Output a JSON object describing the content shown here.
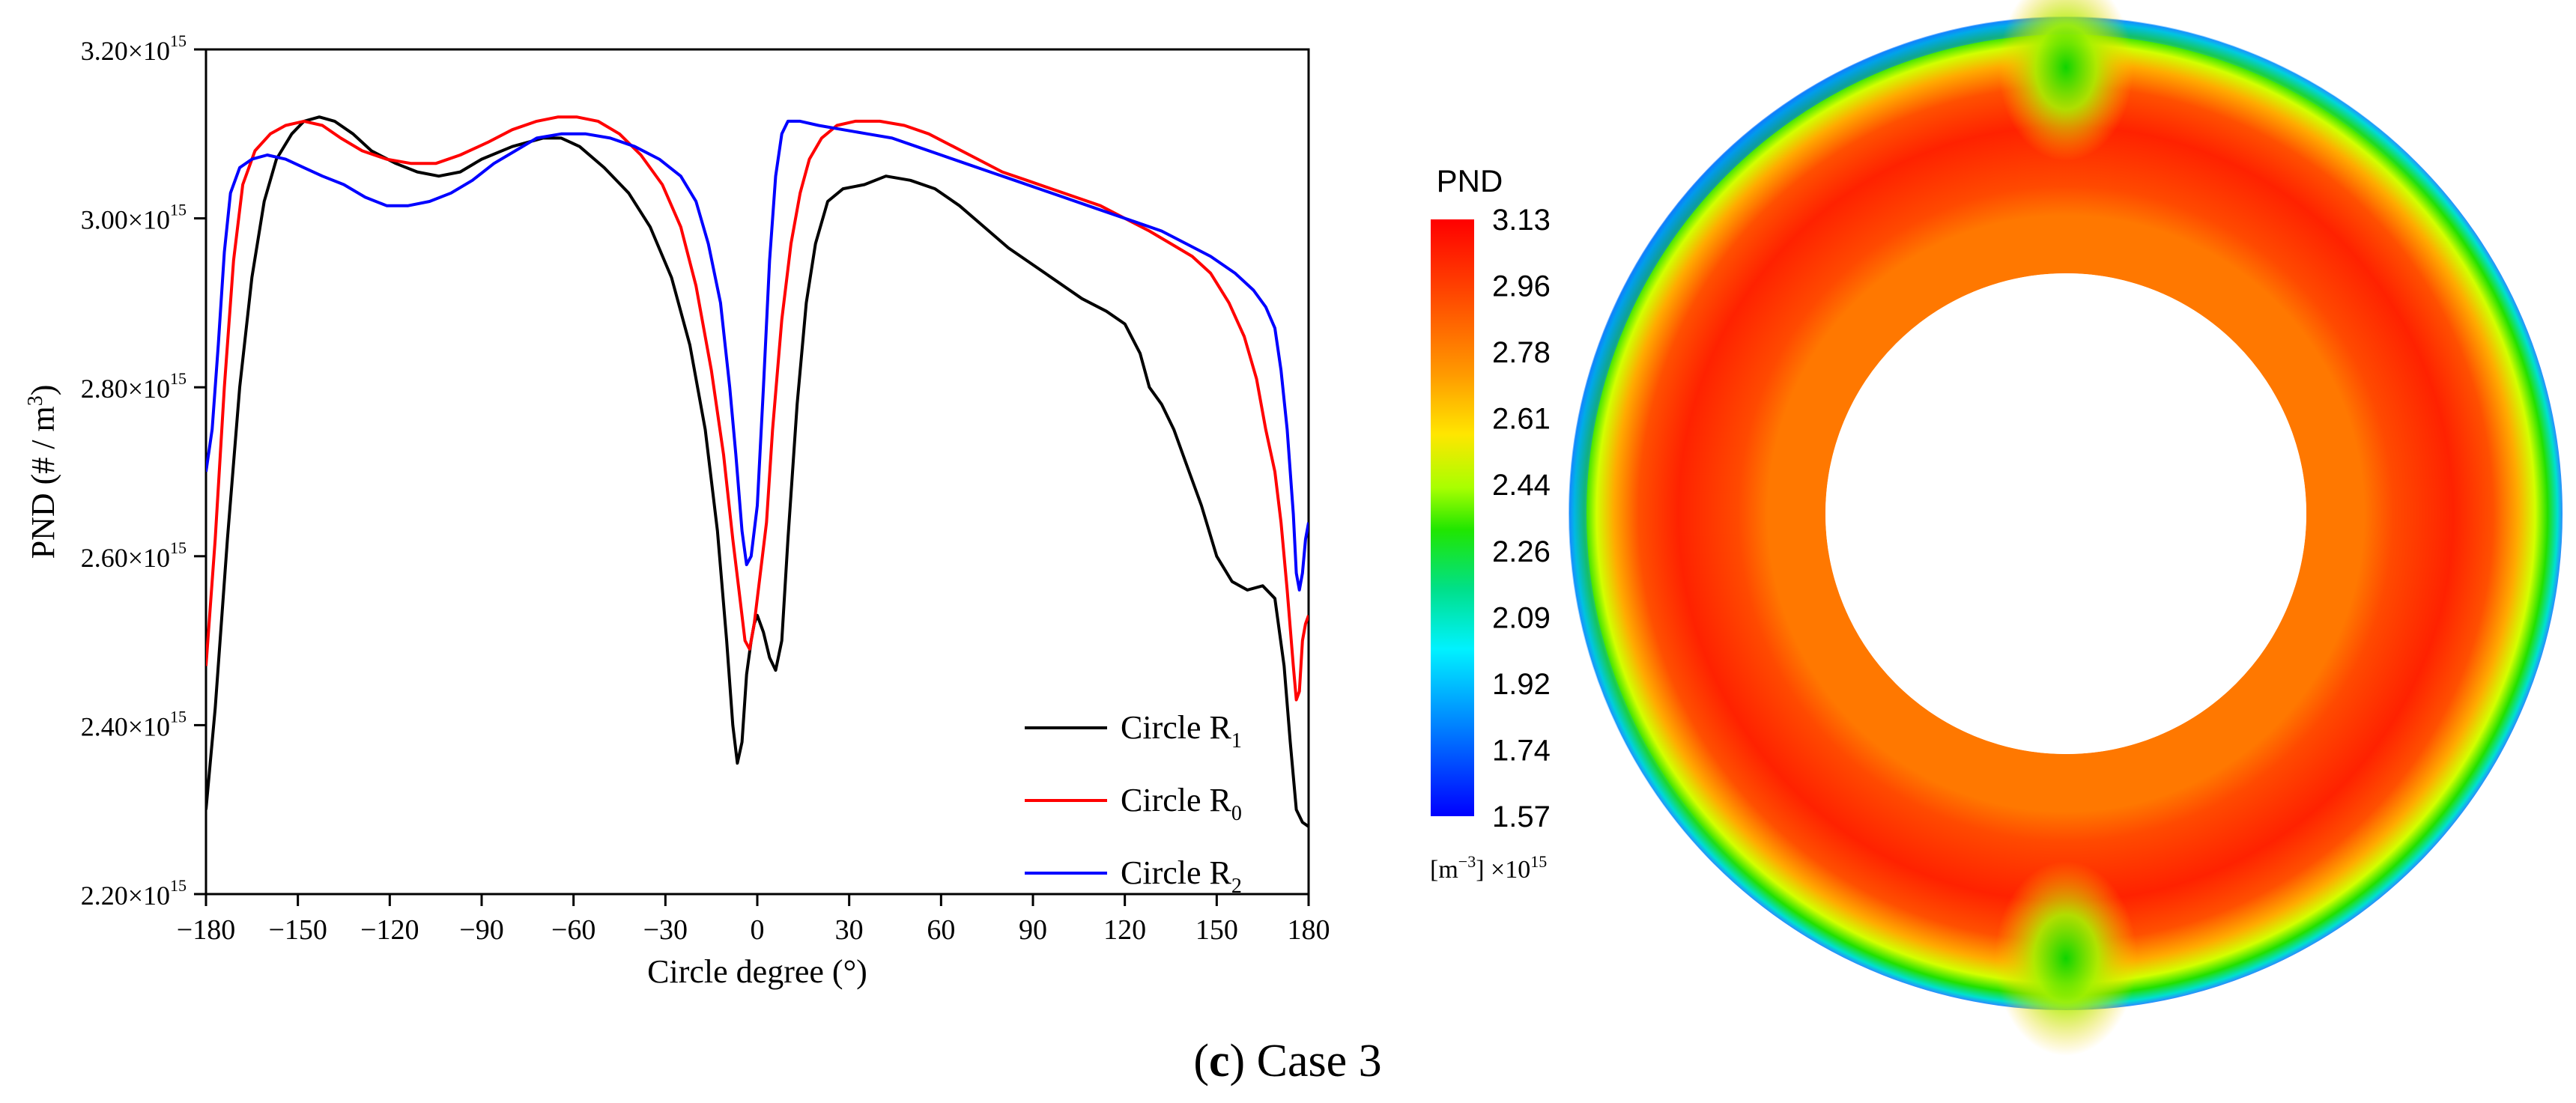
{
  "chart_data": {
    "type": "line",
    "xlabel": "Circle degree (°)",
    "ylabel": "PND (# / m",
    "ylabel_sup": "3",
    "ylabel_close": ")",
    "xlim": [
      -180,
      180
    ],
    "ylim": [
      2.2,
      3.2
    ],
    "y_scale_exponent": 15,
    "x_ticks": [
      -180,
      -150,
      -120,
      -90,
      -60,
      -30,
      0,
      30,
      60,
      90,
      120,
      150,
      180
    ],
    "x_tick_labels": [
      "−180",
      "−150",
      "−120",
      "−90",
      "−60",
      "−30",
      "0",
      "30",
      "60",
      "90",
      "120",
      "150",
      "180"
    ],
    "y_ticks": [
      2.2,
      2.4,
      2.6,
      2.8,
      3.0,
      3.2
    ],
    "y_tick_labels": [
      "2.20×10",
      "2.40×10",
      "2.60×10",
      "2.80×10",
      "3.00×10",
      "3.20×10"
    ],
    "y_tick_sup": "15",
    "legend_position": "bottom-right",
    "series": [
      {
        "name": "Circle R",
        "subscript": "1",
        "color": "#000000",
        "points": [
          [
            -180,
            2.3
          ],
          [
            -177,
            2.42
          ],
          [
            -173,
            2.62
          ],
          [
            -169,
            2.8
          ],
          [
            -165,
            2.93
          ],
          [
            -161,
            3.02
          ],
          [
            -157,
            3.07
          ],
          [
            -152,
            3.1
          ],
          [
            -148,
            3.115
          ],
          [
            -143,
            3.12
          ],
          [
            -138,
            3.115
          ],
          [
            -132,
            3.1
          ],
          [
            -126,
            3.08
          ],
          [
            -118,
            3.065
          ],
          [
            -111,
            3.055
          ],
          [
            -104,
            3.05
          ],
          [
            -97,
            3.055
          ],
          [
            -90,
            3.07
          ],
          [
            -80,
            3.085
          ],
          [
            -70,
            3.095
          ],
          [
            -64,
            3.095
          ],
          [
            -58,
            3.085
          ],
          [
            -50,
            3.06
          ],
          [
            -42,
            3.03
          ],
          [
            -35,
            2.99
          ],
          [
            -28,
            2.93
          ],
          [
            -22,
            2.85
          ],
          [
            -17,
            2.75
          ],
          [
            -13,
            2.63
          ],
          [
            -10,
            2.5
          ],
          [
            -8,
            2.4
          ],
          [
            -6.5,
            2.355
          ],
          [
            -5,
            2.38
          ],
          [
            -3.5,
            2.46
          ],
          [
            -2,
            2.5
          ],
          [
            -1,
            2.52
          ],
          [
            0,
            2.53
          ],
          [
            2,
            2.51
          ],
          [
            4,
            2.48
          ],
          [
            6,
            2.465
          ],
          [
            8,
            2.5
          ],
          [
            10,
            2.62
          ],
          [
            13,
            2.78
          ],
          [
            16,
            2.9
          ],
          [
            19,
            2.97
          ],
          [
            23,
            3.02
          ],
          [
            28,
            3.035
          ],
          [
            35,
            3.04
          ],
          [
            42,
            3.05
          ],
          [
            50,
            3.045
          ],
          [
            58,
            3.035
          ],
          [
            66,
            3.015
          ],
          [
            74,
            2.99
          ],
          [
            82,
            2.965
          ],
          [
            90,
            2.945
          ],
          [
            98,
            2.925
          ],
          [
            106,
            2.905
          ],
          [
            114,
            2.89
          ],
          [
            120,
            2.875
          ],
          [
            125,
            2.84
          ],
          [
            128,
            2.8
          ],
          [
            132,
            2.78
          ],
          [
            136,
            2.75
          ],
          [
            140,
            2.71
          ],
          [
            145,
            2.66
          ],
          [
            150,
            2.6
          ],
          [
            155,
            2.57
          ],
          [
            160,
            2.56
          ],
          [
            165,
            2.565
          ],
          [
            169,
            2.55
          ],
          [
            172,
            2.47
          ],
          [
            174,
            2.38
          ],
          [
            176,
            2.3
          ],
          [
            178,
            2.285
          ],
          [
            180,
            2.28
          ]
        ]
      },
      {
        "name": "Circle R",
        "subscript": "0",
        "color": "#ff0000",
        "points": [
          [
            -180,
            2.47
          ],
          [
            -177,
            2.62
          ],
          [
            -174,
            2.8
          ],
          [
            -171,
            2.95
          ],
          [
            -168,
            3.04
          ],
          [
            -164,
            3.08
          ],
          [
            -159,
            3.1
          ],
          [
            -154,
            3.11
          ],
          [
            -148,
            3.115
          ],
          [
            -142,
            3.11
          ],
          [
            -136,
            3.095
          ],
          [
            -129,
            3.08
          ],
          [
            -121,
            3.07
          ],
          [
            -113,
            3.065
          ],
          [
            -105,
            3.065
          ],
          [
            -97,
            3.075
          ],
          [
            -88,
            3.09
          ],
          [
            -80,
            3.105
          ],
          [
            -72,
            3.115
          ],
          [
            -65,
            3.12
          ],
          [
            -59,
            3.12
          ],
          [
            -52,
            3.115
          ],
          [
            -45,
            3.1
          ],
          [
            -38,
            3.075
          ],
          [
            -31,
            3.04
          ],
          [
            -25,
            2.99
          ],
          [
            -20,
            2.92
          ],
          [
            -15,
            2.82
          ],
          [
            -11,
            2.72
          ],
          [
            -8,
            2.62
          ],
          [
            -6,
            2.56
          ],
          [
            -4,
            2.5
          ],
          [
            -2.5,
            2.49
          ],
          [
            -1,
            2.52
          ],
          [
            1,
            2.58
          ],
          [
            3,
            2.64
          ],
          [
            5,
            2.75
          ],
          [
            8,
            2.88
          ],
          [
            11,
            2.97
          ],
          [
            14,
            3.03
          ],
          [
            17,
            3.07
          ],
          [
            21,
            3.095
          ],
          [
            26,
            3.11
          ],
          [
            32,
            3.115
          ],
          [
            40,
            3.115
          ],
          [
            48,
            3.11
          ],
          [
            56,
            3.1
          ],
          [
            64,
            3.085
          ],
          [
            72,
            3.07
          ],
          [
            80,
            3.055
          ],
          [
            88,
            3.045
          ],
          [
            96,
            3.035
          ],
          [
            104,
            3.025
          ],
          [
            112,
            3.015
          ],
          [
            120,
            3.0
          ],
          [
            128,
            2.985
          ],
          [
            135,
            2.97
          ],
          [
            142,
            2.955
          ],
          [
            148,
            2.935
          ],
          [
            154,
            2.9
          ],
          [
            159,
            2.86
          ],
          [
            163,
            2.81
          ],
          [
            166,
            2.75
          ],
          [
            169,
            2.7
          ],
          [
            171,
            2.64
          ],
          [
            173,
            2.56
          ],
          [
            175,
            2.47
          ],
          [
            176,
            2.43
          ],
          [
            177,
            2.44
          ],
          [
            178,
            2.5
          ],
          [
            179,
            2.52
          ],
          [
            180,
            2.53
          ]
        ]
      },
      {
        "name": "Circle R",
        "subscript": "2",
        "color": "#0000ff",
        "points": [
          [
            -180,
            2.7
          ],
          [
            -178,
            2.75
          ],
          [
            -176,
            2.85
          ],
          [
            -174,
            2.96
          ],
          [
            -172,
            3.03
          ],
          [
            -169,
            3.06
          ],
          [
            -165,
            3.07
          ],
          [
            -160,
            3.075
          ],
          [
            -154,
            3.07
          ],
          [
            -148,
            3.06
          ],
          [
            -142,
            3.05
          ],
          [
            -135,
            3.04
          ],
          [
            -128,
            3.025
          ],
          [
            -121,
            3.015
          ],
          [
            -114,
            3.015
          ],
          [
            -107,
            3.02
          ],
          [
            -100,
            3.03
          ],
          [
            -93,
            3.045
          ],
          [
            -86,
            3.065
          ],
          [
            -79,
            3.08
          ],
          [
            -72,
            3.095
          ],
          [
            -64,
            3.1
          ],
          [
            -56,
            3.1
          ],
          [
            -48,
            3.095
          ],
          [
            -40,
            3.085
          ],
          [
            -32,
            3.07
          ],
          [
            -25,
            3.05
          ],
          [
            -20,
            3.02
          ],
          [
            -16,
            2.97
          ],
          [
            -12,
            2.9
          ],
          [
            -9,
            2.8
          ],
          [
            -7,
            2.72
          ],
          [
            -5,
            2.63
          ],
          [
            -3.5,
            2.59
          ],
          [
            -2,
            2.6
          ],
          [
            0,
            2.66
          ],
          [
            2,
            2.8
          ],
          [
            4,
            2.95
          ],
          [
            6,
            3.05
          ],
          [
            8,
            3.1
          ],
          [
            10,
            3.115
          ],
          [
            14,
            3.115
          ],
          [
            20,
            3.11
          ],
          [
            28,
            3.105
          ],
          [
            36,
            3.1
          ],
          [
            44,
            3.095
          ],
          [
            52,
            3.085
          ],
          [
            60,
            3.075
          ],
          [
            68,
            3.065
          ],
          [
            76,
            3.055
          ],
          [
            84,
            3.045
          ],
          [
            92,
            3.035
          ],
          [
            100,
            3.025
          ],
          [
            108,
            3.015
          ],
          [
            116,
            3.005
          ],
          [
            124,
            2.995
          ],
          [
            132,
            2.985
          ],
          [
            140,
            2.97
          ],
          [
            148,
            2.955
          ],
          [
            156,
            2.935
          ],
          [
            162,
            2.915
          ],
          [
            166,
            2.895
          ],
          [
            169,
            2.87
          ],
          [
            171,
            2.82
          ],
          [
            173,
            2.75
          ],
          [
            175,
            2.65
          ],
          [
            176,
            2.58
          ],
          [
            177,
            2.56
          ],
          [
            178,
            2.58
          ],
          [
            179,
            2.62
          ],
          [
            180,
            2.64
          ]
        ]
      }
    ]
  },
  "contour": {
    "title": "PND",
    "colorbar_labels": [
      "3.13",
      "2.96",
      "2.78",
      "2.61",
      "2.44",
      "2.26",
      "2.09",
      "1.92",
      "1.74",
      "1.57"
    ],
    "colorbar_colors": [
      "#ff0000",
      "#ff5a00",
      "#ffa000",
      "#ffe000",
      "#b4ff00",
      "#28e000",
      "#00e08c",
      "#00f0ff",
      "#0096ff",
      "#0000ff"
    ],
    "unit_label": "[m",
    "unit_sup": "−3",
    "unit_suffix": "] ×10",
    "unit_exp": "15"
  },
  "caption": {
    "letter": "c",
    "open": "(",
    "close": ")",
    "text": " Case 3"
  }
}
